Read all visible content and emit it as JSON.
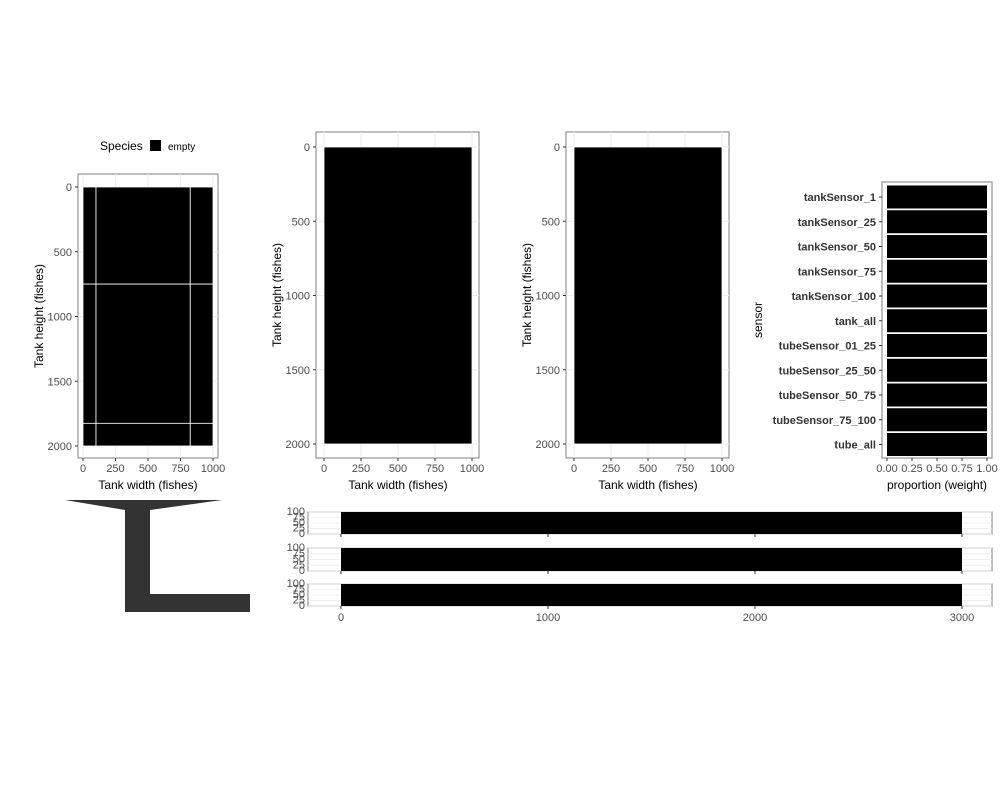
{
  "legend": {
    "title": "Species",
    "items": [
      {
        "label": "empty",
        "color": "#000000"
      }
    ]
  },
  "colors": {
    "fill": "#000000",
    "panel_border": "#7f7f7f",
    "grid": "#ebebeb",
    "tube_shape": "#333333"
  },
  "chart_data": [
    {
      "id": "tank1",
      "type": "heatmap",
      "xlabel": "Tank width (fishes)",
      "ylabel": "Tank height (fishes)",
      "xlim": [
        0,
        1000
      ],
      "ylim": [
        0,
        2000
      ],
      "y_reversed": true,
      "xticks": [
        0,
        250,
        500,
        750,
        1000
      ],
      "yticks": [
        0,
        500,
        1000,
        1500,
        2000
      ],
      "cells": [
        {
          "x0": 0,
          "x1": 100,
          "y0": 0,
          "y1": 750
        },
        {
          "x0": 100,
          "x1": 825,
          "y0": 0,
          "y1": 750
        },
        {
          "x0": 825,
          "x1": 1000,
          "y0": 0,
          "y1": 750
        },
        {
          "x0": 0,
          "x1": 100,
          "y0": 750,
          "y1": 1825
        },
        {
          "x0": 100,
          "x1": 825,
          "y0": 750,
          "y1": 1825
        },
        {
          "x0": 825,
          "x1": 1000,
          "y0": 750,
          "y1": 1825
        },
        {
          "x0": 0,
          "x1": 100,
          "y0": 1825,
          "y1": 2000
        },
        {
          "x0": 100,
          "x1": 825,
          "y0": 1825,
          "y1": 2000
        },
        {
          "x0": 825,
          "x1": 1000,
          "y0": 1825,
          "y1": 2000
        }
      ],
      "grid": true
    },
    {
      "id": "tank2",
      "type": "heatmap",
      "xlabel": "Tank width (fishes)",
      "ylabel": "Tank height (fishes)",
      "xlim": [
        0,
        1000
      ],
      "ylim": [
        0,
        2000
      ],
      "y_reversed": true,
      "xticks": [
        0,
        250,
        500,
        750,
        1000
      ],
      "yticks": [
        0,
        500,
        1000,
        1500,
        2000
      ],
      "cells": [
        {
          "x0": 0,
          "x1": 1000,
          "y0": 0,
          "y1": 2000
        }
      ],
      "grid": true
    },
    {
      "id": "tank3",
      "type": "heatmap",
      "xlabel": "Tank width (fishes)",
      "ylabel": "Tank height (fishes)",
      "xlim": [
        0,
        1000
      ],
      "ylim": [
        0,
        2000
      ],
      "y_reversed": true,
      "xticks": [
        0,
        250,
        500,
        750,
        1000
      ],
      "yticks": [
        0,
        500,
        1000,
        1500,
        2000
      ],
      "cells": [
        {
          "x0": 0,
          "x1": 1000,
          "y0": 0,
          "y1": 2000
        }
      ],
      "grid": true
    },
    {
      "id": "sensors",
      "type": "bar",
      "orientation": "horizontal",
      "xlabel": "proportion (weight)",
      "ylabel": "sensor",
      "xlim": [
        0,
        1
      ],
      "xticks": [
        "0.00",
        "0.25",
        "0.50",
        "0.75",
        "1.00"
      ],
      "categories": [
        "tankSensor_1",
        "tankSensor_25",
        "tankSensor_50",
        "tankSensor_75",
        "tankSensor_100",
        "tank_all",
        "tubeSensor_01_25",
        "tubeSensor_25_50",
        "tubeSensor_50_75",
        "tubeSensor_75_100",
        "tube_all"
      ],
      "values": [
        1,
        1,
        1,
        1,
        1,
        1,
        1,
        1,
        1,
        1,
        1
      ]
    },
    {
      "id": "tube1",
      "type": "area",
      "xlim": [
        0,
        3000
      ],
      "ylim": [
        0,
        100
      ],
      "yticks": [
        "0",
        "25",
        "50",
        "75",
        "100"
      ],
      "x": [
        0,
        3000
      ],
      "y": [
        100,
        100
      ]
    },
    {
      "id": "tube2",
      "type": "area",
      "xlim": [
        0,
        3000
      ],
      "ylim": [
        0,
        100
      ],
      "yticks": [
        "0",
        "25",
        "50",
        "75",
        "100"
      ],
      "x": [
        0,
        3000
      ],
      "y": [
        100,
        100
      ]
    },
    {
      "id": "tube3",
      "type": "area",
      "xlim": [
        0,
        3000
      ],
      "ylim": [
        0,
        100
      ],
      "yticks": [
        "0",
        "25",
        "50",
        "75",
        "100"
      ],
      "xticks": [
        "0",
        "1000",
        "2000",
        "3000"
      ],
      "x": [
        0,
        3000
      ],
      "y": [
        100,
        100
      ]
    }
  ]
}
